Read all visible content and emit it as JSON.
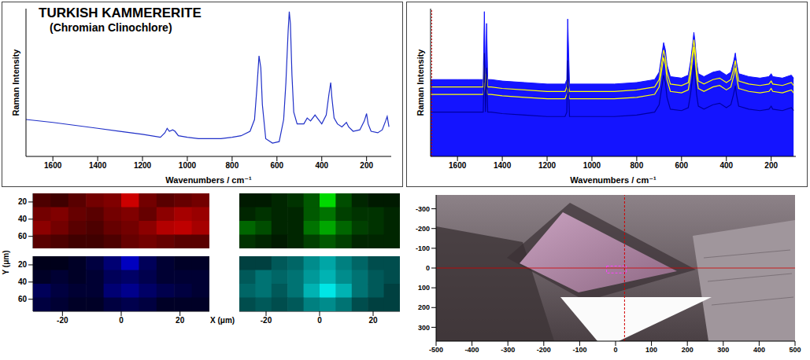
{
  "chart_data": [
    {
      "type": "line",
      "title": "TURKISH KAMMERERITE",
      "subtitle": "(Chromian Clinochlore)",
      "xlabel": "Wavenumbers / cm⁻¹",
      "ylabel": "Raman Intensity",
      "xlim": [
        1720,
        90
      ],
      "xticks": [
        1600,
        1400,
        1200,
        1000,
        800,
        600,
        400,
        200
      ],
      "ylim": [
        0,
        100
      ],
      "tick_labels": "x",
      "color": "#2030c8",
      "x": [
        1720,
        1600,
        1500,
        1400,
        1300,
        1200,
        1120,
        1100,
        1090,
        1080,
        1065,
        1055,
        1040,
        1000,
        950,
        900,
        850,
        800,
        760,
        720,
        700,
        690,
        680,
        672,
        665,
        650,
        620,
        590,
        570,
        560,
        550,
        545,
        540,
        533,
        525,
        510,
        480,
        465,
        450,
        430,
        420,
        400,
        380,
        368,
        360,
        355,
        345,
        330,
        310,
        290,
        280,
        260,
        230,
        210,
        200,
        193,
        180,
        150,
        130,
        115,
        108,
        100
      ],
      "values": [
        25,
        23,
        21,
        19,
        17,
        15,
        13,
        16,
        19,
        17,
        18,
        17,
        14,
        13,
        12,
        12,
        12,
        13,
        14,
        17,
        25,
        45,
        68,
        60,
        35,
        12,
        9,
        10,
        25,
        50,
        85,
        98,
        90,
        55,
        30,
        22,
        22,
        26,
        24,
        28,
        26,
        22,
        28,
        42,
        50,
        40,
        26,
        22,
        20,
        23,
        20,
        17,
        18,
        24,
        29,
        22,
        17,
        16,
        18,
        24,
        27,
        20
      ]
    },
    {
      "type": "line",
      "xlabel": "Wavenumbers / cm⁻¹",
      "ylabel": "Raman Intensity",
      "xlim": [
        1720,
        90
      ],
      "xticks": [
        1600,
        1400,
        1200,
        1000,
        800,
        600,
        400,
        200
      ],
      "ylim": [
        0,
        100
      ],
      "tick_labels": "x",
      "cursor": 1715,
      "x": [
        1720,
        1650,
        1600,
        1550,
        1500,
        1485,
        1480,
        1475,
        1470,
        1465,
        1450,
        1400,
        1300,
        1200,
        1120,
        1112,
        1108,
        1100,
        1000,
        900,
        800,
        720,
        700,
        690,
        680,
        672,
        665,
        650,
        600,
        570,
        560,
        550,
        545,
        540,
        533,
        525,
        500,
        460,
        430,
        400,
        380,
        368,
        360,
        355,
        345,
        300,
        250,
        210,
        200,
        193,
        150,
        110,
        100
      ],
      "series": [
        {
          "type": "area",
          "color": "#1414ff",
          "values": [
            52,
            52,
            52,
            52,
            52,
            52,
            98,
            52,
            90,
            52,
            52,
            51,
            50,
            49,
            49,
            52,
            93,
            49,
            49,
            49,
            50,
            52,
            57,
            67,
            77,
            72,
            62,
            54,
            53,
            55,
            64,
            77,
            84,
            78,
            64,
            56,
            54,
            57,
            58,
            55,
            57,
            64,
            70,
            64,
            56,
            54,
            53,
            54,
            56,
            54,
            53,
            55,
            53
          ]
        },
        {
          "type": "line",
          "color": "#ffff00",
          "values": [
            47,
            47,
            47,
            47,
            47,
            47,
            62,
            47,
            56,
            47,
            47,
            46,
            45,
            44,
            44,
            47,
            52,
            44,
            44,
            44,
            45,
            47,
            52,
            62,
            72,
            67,
            57,
            49,
            48,
            50,
            59,
            72,
            79,
            73,
            59,
            51,
            49,
            52,
            53,
            50,
            52,
            59,
            65,
            59,
            51,
            49,
            48,
            49,
            51,
            49,
            48,
            50,
            48
          ]
        },
        {
          "type": "line",
          "color": "#ffff00",
          "values": [
            42,
            42,
            42,
            42,
            42,
            42,
            50,
            42,
            46,
            42,
            42,
            41,
            40,
            39,
            39,
            42,
            46,
            39,
            39,
            39,
            40,
            42,
            47,
            57,
            67,
            62,
            52,
            44,
            43,
            45,
            54,
            67,
            74,
            68,
            54,
            46,
            44,
            47,
            48,
            45,
            47,
            54,
            60,
            54,
            46,
            44,
            43,
            44,
            46,
            44,
            43,
            45,
            43
          ]
        },
        {
          "type": "line",
          "color": "#0000a0",
          "values": [
            30,
            30,
            30,
            30,
            30,
            30,
            70,
            30,
            60,
            30,
            30,
            29,
            28,
            27,
            27,
            30,
            65,
            27,
            27,
            27,
            28,
            30,
            35,
            45,
            55,
            50,
            40,
            32,
            31,
            33,
            42,
            55,
            62,
            56,
            42,
            34,
            32,
            35,
            36,
            33,
            35,
            42,
            48,
            42,
            34,
            32,
            31,
            32,
            34,
            32,
            31,
            33,
            31
          ]
        }
      ]
    },
    {
      "type": "heatmap",
      "xlabel": "X (μm)",
      "ylabel": "Y (μm)",
      "xlim": [
        -30,
        30
      ],
      "ylim": [
        74,
        10
      ],
      "xticks": [
        -20,
        0,
        20
      ],
      "yticks": [
        20,
        40,
        60
      ],
      "clim": [
        0,
        100
      ],
      "x": [
        -27,
        -21,
        -15,
        -9,
        -3,
        3,
        9,
        15,
        21,
        27
      ],
      "y": [
        18,
        34,
        50,
        66
      ],
      "panels": [
        {
          "color": "#ff0000",
          "tick_labels": "y",
          "cursor": 25,
          "cells": [
            [
              30,
              25,
              35,
              45,
              50,
              80,
              45,
              35,
              40,
              45
            ],
            [
              45,
              50,
              40,
              35,
              45,
              50,
              40,
              55,
              65,
              60
            ],
            [
              55,
              45,
              35,
              30,
              40,
              45,
              55,
              70,
              75,
              65
            ],
            [
              35,
              30,
              25,
              25,
              30,
              40,
              45,
              40,
              35,
              35
            ]
          ]
        },
        {
          "color": "#00ff00",
          "tick_labels": false,
          "cells": [
            [
              10,
              10,
              15,
              20,
              35,
              85,
              30,
              15,
              10,
              10
            ],
            [
              15,
              20,
              15,
              15,
              35,
              45,
              25,
              20,
              20,
              15
            ],
            [
              40,
              30,
              15,
              15,
              45,
              65,
              40,
              25,
              20,
              15
            ],
            [
              20,
              15,
              10,
              15,
              25,
              35,
              25,
              15,
              15,
              15
            ]
          ]
        },
        {
          "color": "#0000ff",
          "tick_labels": true,
          "cells": [
            [
              10,
              10,
              15,
              25,
              45,
              75,
              35,
              20,
              15,
              15
            ],
            [
              15,
              20,
              15,
              20,
              35,
              40,
              30,
              20,
              20,
              20
            ],
            [
              35,
              25,
              20,
              20,
              45,
              55,
              40,
              30,
              25,
              20
            ],
            [
              25,
              20,
              15,
              15,
              25,
              30,
              25,
              15,
              15,
              15
            ]
          ]
        },
        {
          "color": "#00ffff",
          "tick_labels": "x",
          "cursor": 25,
          "cells": [
            [
              25,
              25,
              35,
              40,
              55,
              65,
              50,
              40,
              30,
              30
            ],
            [
              35,
              45,
              40,
              45,
              60,
              70,
              55,
              45,
              35,
              30
            ],
            [
              40,
              45,
              35,
              45,
              70,
              90,
              70,
              45,
              35,
              25
            ],
            [
              30,
              35,
              30,
              35,
              50,
              55,
              45,
              30,
              25,
              25
            ]
          ]
        }
      ]
    },
    {
      "type": "image",
      "xlim": [
        -500,
        500
      ],
      "ylim": [
        370,
        -370
      ],
      "xticks": [
        -500,
        -400,
        -300,
        -200,
        -100,
        0,
        100,
        200,
        300,
        400,
        500
      ],
      "yticks": [
        -300,
        -200,
        -100,
        0,
        100,
        200,
        300
      ],
      "crosshair": {
        "x": 25,
        "y": 0
      },
      "map_area": {
        "x": [
          -25,
          30
        ],
        "y": [
          -10,
          25
        ]
      }
    }
  ]
}
